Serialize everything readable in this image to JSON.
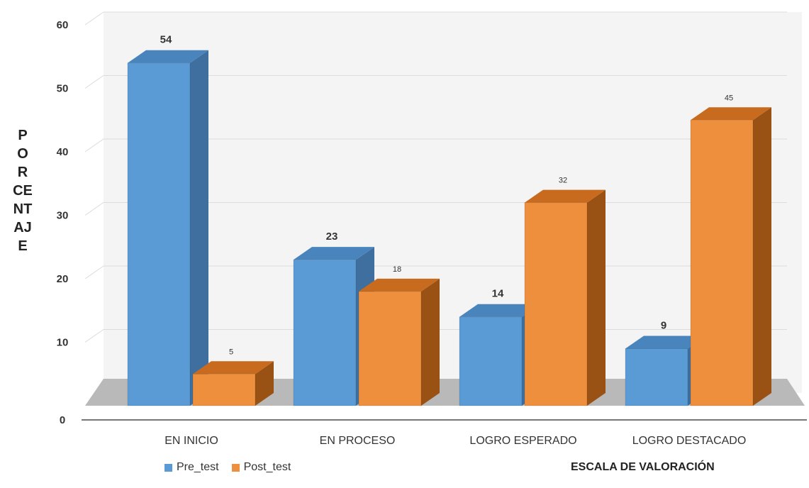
{
  "colors": {
    "pre_front": "#5b9bd5",
    "pre_side": "#3f6f9f",
    "pre_top": "#4a84bd",
    "post_front": "#ed8f3d",
    "post_side": "#9a5214",
    "post_top": "#c96b1e",
    "floor": "#b9b9b9",
    "wall": "#f4f4f4",
    "grid": "#dcdcdc"
  },
  "chart_data": {
    "type": "bar",
    "title": "",
    "xlabel": "ESCALA DE VALORACIÓN",
    "ylabel": "PORCENTAJE",
    "categories": [
      "EN INICIO",
      "EN PROCESO",
      "LOGRO ESPERADO",
      "LOGRO DESTACADO"
    ],
    "series": [
      {
        "name": "Pre_test",
        "values": [
          54,
          23,
          14,
          9
        ]
      },
      {
        "name": "Post_test",
        "values": [
          5,
          18,
          32,
          45
        ]
      }
    ],
    "value_labels": [
      [
        "54",
        "23",
        "14",
        "9"
      ],
      [
        "5",
        "18",
        "32",
        "45"
      ]
    ],
    "ylim": [
      0,
      60
    ],
    "yticks": [
      "0",
      "10",
      "20",
      "30",
      "40",
      "50",
      "60"
    ],
    "grid": true,
    "legend_position": "bottom-left",
    "style": "3d-clustered-column"
  }
}
